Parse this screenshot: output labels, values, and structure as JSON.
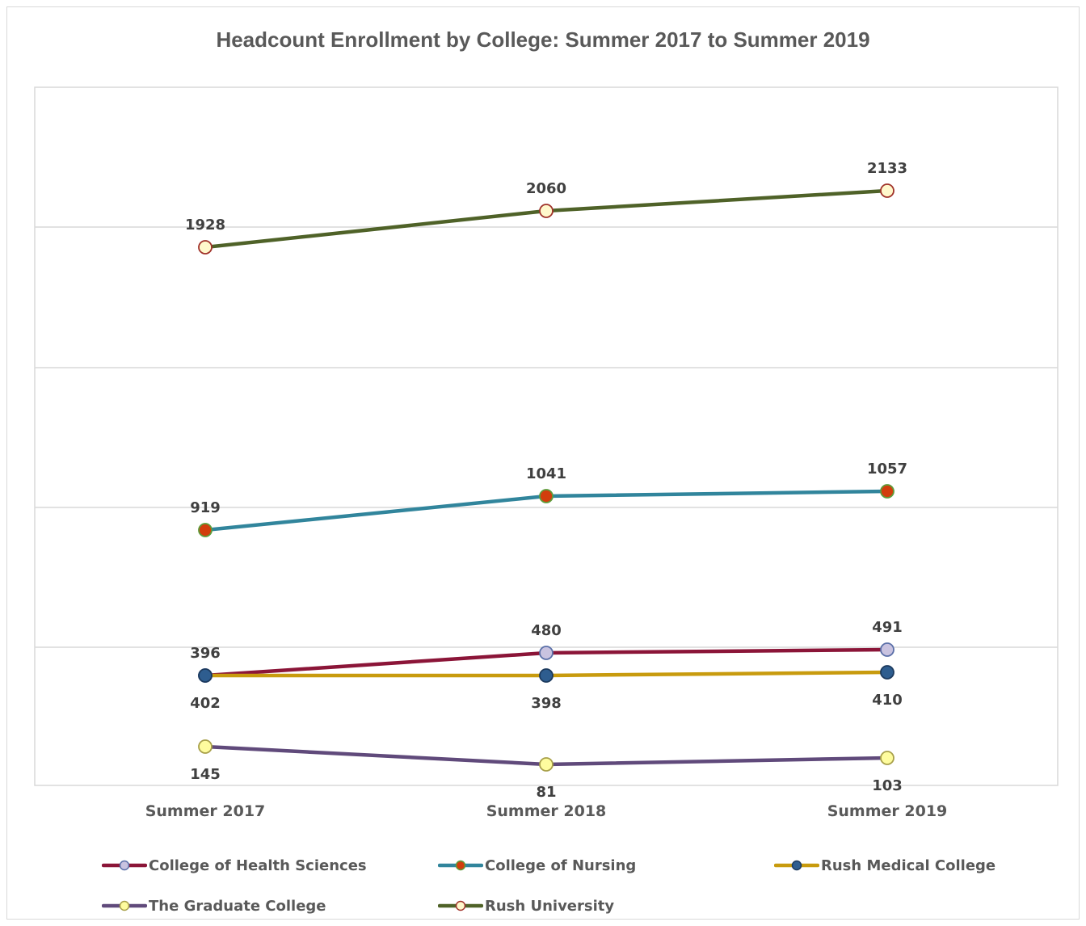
{
  "chart_data": {
    "type": "line",
    "title": "Headcount Enrollment by College: Summer 2017 to Summer 2019",
    "xlabel": "",
    "ylabel": "",
    "categories": [
      "Summer 2017",
      "Summer 2018",
      "Summer 2019"
    ],
    "grid": true,
    "legend_position": "bottom",
    "series": [
      {
        "name": "College of Health Sciences",
        "values": [
          396,
          480,
          491
        ],
        "line_color": "#8b1538",
        "marker_fill": "#c9c3e0",
        "marker_edge": "#5a6fa8",
        "label_pos": "above"
      },
      {
        "name": "College of Nursing",
        "values": [
          919,
          1041,
          1057
        ],
        "line_color": "#31859c",
        "marker_fill": "#d23d0c",
        "marker_edge": "#5e9c3a",
        "label_pos": "above"
      },
      {
        "name": "Rush Medical College",
        "values": [
          402,
          398,
          410
        ],
        "line_color": "#c89b0e",
        "marker_fill": "#2e5d8f",
        "marker_edge": "#1c3a5e",
        "label_pos": "below"
      },
      {
        "name": "The Graduate College",
        "values": [
          145,
          81,
          103
        ],
        "line_color": "#604a7b",
        "marker_fill": "#fefc9e",
        "marker_edge": "#a8a04a",
        "label_pos": "below"
      },
      {
        "name": "Rush University",
        "values": [
          1928,
          2060,
          2133
        ],
        "line_color": "#4f6228",
        "marker_fill": "#fff8cc",
        "marker_edge": "#a0322a",
        "label_pos": "above"
      }
    ]
  }
}
